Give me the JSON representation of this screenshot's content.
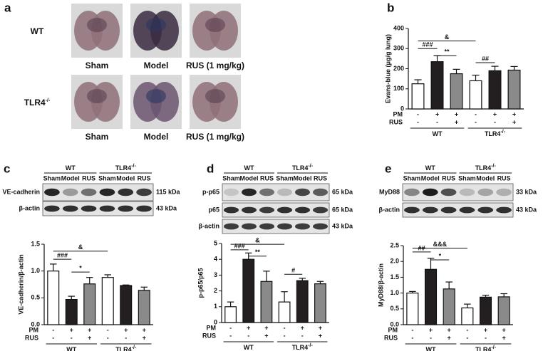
{
  "panel_a": {
    "letter": "a",
    "rows": [
      {
        "text": "WT"
      },
      {
        "text": "TLR4",
        "sup": "-/-"
      }
    ],
    "columns": [
      "Sham",
      "Model",
      "RUS (1 mg/kg)"
    ]
  },
  "chart_data": [
    {
      "type": "bar",
      "letter": "b",
      "ylabel": "Evans-blue (μg/g lung)",
      "values": [
        125,
        235,
        175,
        140,
        190,
        193
      ],
      "errors": [
        20,
        30,
        22,
        28,
        22,
        18
      ],
      "colors": [
        "#ffffff",
        "#231f20",
        "#8a8a8a",
        "#ffffff",
        "#231f20",
        "#8a8a8a"
      ],
      "ylim": [
        0,
        400
      ],
      "yticks": [
        0,
        100,
        200,
        300,
        400
      ],
      "annotations": [
        "###",
        "**",
        "&",
        "##"
      ],
      "conditions": [
        {
          "name": "PM",
          "values": [
            "-",
            "+",
            "+",
            "-",
            "+",
            "+"
          ]
        },
        {
          "name": "RUS",
          "values": [
            "-",
            "-",
            "+",
            "-",
            "-",
            "+"
          ]
        }
      ],
      "groups": [
        {
          "text": "WT"
        },
        {
          "text": "TLR4",
          "sup": "-/-"
        }
      ]
    },
    {
      "type": "bar",
      "letter": "c",
      "ylabel": "VE-cadherin/β-actin",
      "values": [
        1.0,
        0.47,
        0.76,
        0.88,
        0.73,
        0.64
      ],
      "errors": [
        0.13,
        0.06,
        0.12,
        0.05,
        0.01,
        0.06
      ],
      "colors": [
        "#ffffff",
        "#231f20",
        "#8a8a8a",
        "#ffffff",
        "#231f20",
        "#8a8a8a"
      ],
      "ylim": [
        0,
        1.5
      ],
      "yticks": [
        {
          "value": 0,
          "label": "0.0"
        },
        0.5,
        {
          "value": 1,
          "label": "1.0"
        },
        1.5
      ],
      "annotations": [
        "###",
        "*",
        "&"
      ],
      "conditions": [
        {
          "name": "PM",
          "values": [
            "-",
            "+",
            "+",
            "-",
            "+",
            "+"
          ]
        },
        {
          "name": "RUS",
          "values": [
            "-",
            "-",
            "+",
            "-",
            "-",
            "+"
          ]
        }
      ],
      "groups": [
        {
          "text": "WT"
        },
        {
          "text": "TLR4",
          "sup": "-/-"
        }
      ],
      "blot": {
        "columns": [
          "Sham",
          "Model",
          "RUS"
        ],
        "rows": [
          {
            "name": "VE-cadherin",
            "size": "115 kDa"
          },
          {
            "name": "β-actin",
            "size": "43 kDa"
          }
        ]
      }
    },
    {
      "type": "bar",
      "letter": "d",
      "ylabel": "p-p65/p65",
      "values": [
        1.0,
        4.0,
        2.6,
        1.3,
        2.65,
        2.45
      ],
      "errors": [
        0.3,
        0.4,
        0.65,
        0.65,
        0.15,
        0.15
      ],
      "colors": [
        "#ffffff",
        "#231f20",
        "#8a8a8a",
        "#ffffff",
        "#231f20",
        "#8a8a8a"
      ],
      "ylim": [
        0,
        5
      ],
      "yticks": [
        0,
        1,
        2,
        3,
        4,
        5
      ],
      "annotations": [
        "###",
        "**",
        "&",
        "#"
      ],
      "conditions": [
        {
          "name": "PM",
          "values": [
            "-",
            "+",
            "+",
            "-",
            "+",
            "+"
          ]
        },
        {
          "name": "RUS",
          "values": [
            "-",
            "-",
            "+",
            "-",
            "-",
            "+"
          ]
        }
      ],
      "groups": [
        {
          "text": "WT"
        },
        {
          "text": "TLR4",
          "sup": "-/-"
        }
      ],
      "blot": {
        "columns": [
          "Sham",
          "Model",
          "RUS"
        ],
        "rows": [
          {
            "name": "p-p65",
            "size": "65 kDa"
          },
          {
            "name": "p65",
            "size": "65 kDa"
          },
          {
            "name": "β-actin",
            "size": "43 kDa"
          }
        ]
      }
    },
    {
      "type": "bar",
      "letter": "e",
      "ylabel": "MyD88/β-actin",
      "values": [
        1.0,
        1.75,
        1.13,
        0.53,
        0.87,
        0.88
      ],
      "errors": [
        0.05,
        0.35,
        0.22,
        0.12,
        0.06,
        0.1
      ],
      "colors": [
        "#ffffff",
        "#231f20",
        "#8a8a8a",
        "#ffffff",
        "#231f20",
        "#8a8a8a"
      ],
      "ylim": [
        0,
        2.5
      ],
      "yticks": [
        {
          "value": 0,
          "label": "0.0"
        },
        0.5,
        {
          "value": 1,
          "label": "1.0"
        },
        1.5,
        {
          "value": 2,
          "label": "2.0"
        },
        2.5
      ],
      "annotations": [
        "##",
        "*",
        "&&&"
      ],
      "conditions": [
        {
          "name": "PM",
          "values": [
            "-",
            "+",
            "+",
            "-",
            "+",
            "+"
          ]
        },
        {
          "name": "RUS",
          "values": [
            "-",
            "-",
            "+",
            "-",
            "-",
            "+"
          ]
        }
      ],
      "groups": [
        {
          "text": "WT"
        },
        {
          "text": "TLR4",
          "sup": "-/-"
        }
      ],
      "blot": {
        "columns": [
          "Sham",
          "Model",
          "RUS"
        ],
        "rows": [
          {
            "name": "MyD88",
            "size": "33 kDa"
          },
          {
            "name": "β-actin",
            "size": "43 kDa"
          }
        ]
      }
    }
  ]
}
